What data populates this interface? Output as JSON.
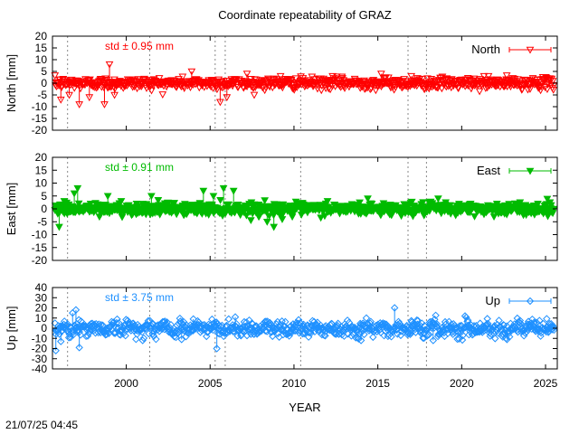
{
  "chart_data": {
    "type": "scatter",
    "title": "Coordinate repeatability of GRAZ",
    "xlabel": "YEAR",
    "xlim": [
      1995.6,
      2025.7
    ],
    "x_ticks": [
      2000,
      2005,
      2010,
      2015,
      2020,
      2025
    ],
    "x_tick_labels": [
      "2000",
      "2005",
      "2010",
      "2015",
      "2020",
      "2025"
    ],
    "vertical_dashed_lines": [
      1996.5,
      2001.4,
      2005.3,
      2005.9,
      2010.4,
      2016.8,
      2017.9
    ],
    "timestamp": "21/07/25 04:45",
    "panels": [
      {
        "key": "north",
        "ylabel": "North [mm]",
        "ylim": [
          -20,
          20
        ],
        "y_ticks": [
          -20,
          -15,
          -10,
          -5,
          0,
          5,
          10,
          15,
          20
        ],
        "y_tick_labels": [
          "-20",
          "-15",
          "-10",
          "-5",
          "0",
          "5",
          "10",
          "15",
          "20"
        ],
        "series_name": "North",
        "std_label": "std ± 0.95 mm",
        "std": 0.95,
        "color": "#ff0000",
        "marker": "triangle-down-open"
      },
      {
        "key": "east",
        "ylabel": "East [mm]",
        "ylim": [
          -20,
          20
        ],
        "y_ticks": [
          -20,
          -15,
          -10,
          -5,
          0,
          5,
          10,
          15,
          20
        ],
        "y_tick_labels": [
          "-20",
          "-15",
          "-10",
          "-5",
          "0",
          "5",
          "10",
          "15",
          "20"
        ],
        "series_name": "East",
        "std_label": "std ± 0.91 mm",
        "std": 0.91,
        "color": "#00bb00",
        "marker": "triangle-down-filled"
      },
      {
        "key": "up",
        "ylabel": "Up [mm]",
        "ylim": [
          -40,
          40
        ],
        "y_ticks": [
          -40,
          -30,
          -20,
          -10,
          0,
          10,
          20,
          30,
          40
        ],
        "y_tick_labels": [
          "-40",
          "-30",
          "-20",
          "-10",
          "0",
          "10",
          "20",
          "30",
          "40"
        ],
        "series_name": "Up",
        "std_label": "std ± 3.75 mm",
        "std": 3.75,
        "color": "#1e90ff",
        "marker": "diamond-open"
      }
    ],
    "outliers": {
      "north": [
        [
          1996.1,
          -7
        ],
        [
          1996.6,
          -5
        ],
        [
          1997.2,
          -9
        ],
        [
          1997.8,
          -6
        ],
        [
          1998.7,
          -9
        ],
        [
          1999.0,
          8
        ],
        [
          1999.3,
          -5
        ],
        [
          2003.9,
          5
        ],
        [
          2005.6,
          -8
        ],
        [
          2006.0,
          -6
        ],
        [
          2007.2,
          4
        ],
        [
          2009.2,
          3
        ],
        [
          2012.3,
          3
        ],
        [
          2015.2,
          4
        ],
        [
          2017.0,
          3
        ],
        [
          2021.6,
          3
        ]
      ],
      "east": [
        [
          1996.0,
          -7
        ],
        [
          1996.3,
          3
        ],
        [
          1996.9,
          6
        ],
        [
          1997.1,
          8
        ],
        [
          1998.4,
          -3
        ],
        [
          1998.9,
          5
        ],
        [
          1999.7,
          3
        ],
        [
          2000.6,
          -2
        ],
        [
          2001.5,
          5
        ],
        [
          2003.0,
          -2
        ],
        [
          2004.6,
          7
        ],
        [
          2005.2,
          5
        ],
        [
          2005.8,
          8
        ],
        [
          2006.4,
          7
        ],
        [
          2007.9,
          -3
        ],
        [
          2008.4,
          -5
        ],
        [
          2008.8,
          -7
        ],
        [
          2009.3,
          -4
        ],
        [
          2009.9,
          -3
        ],
        [
          2012.0,
          3
        ],
        [
          2014.4,
          4
        ],
        [
          2018.6,
          4
        ],
        [
          2022.1,
          2
        ]
      ],
      "up": [
        [
          1995.8,
          -22
        ],
        [
          1996.1,
          -13
        ],
        [
          1996.8,
          15
        ],
        [
          1997.0,
          18
        ],
        [
          1997.2,
          -19
        ],
        [
          2003.3,
          -11
        ],
        [
          2004.0,
          9
        ],
        [
          2005.4,
          -20
        ],
        [
          2006.5,
          11
        ],
        [
          2014.0,
          -12
        ],
        [
          2016.0,
          20
        ],
        [
          2018.3,
          -12
        ],
        [
          2020.2,
          12
        ],
        [
          2022.7,
          -11
        ]
      ]
    }
  }
}
